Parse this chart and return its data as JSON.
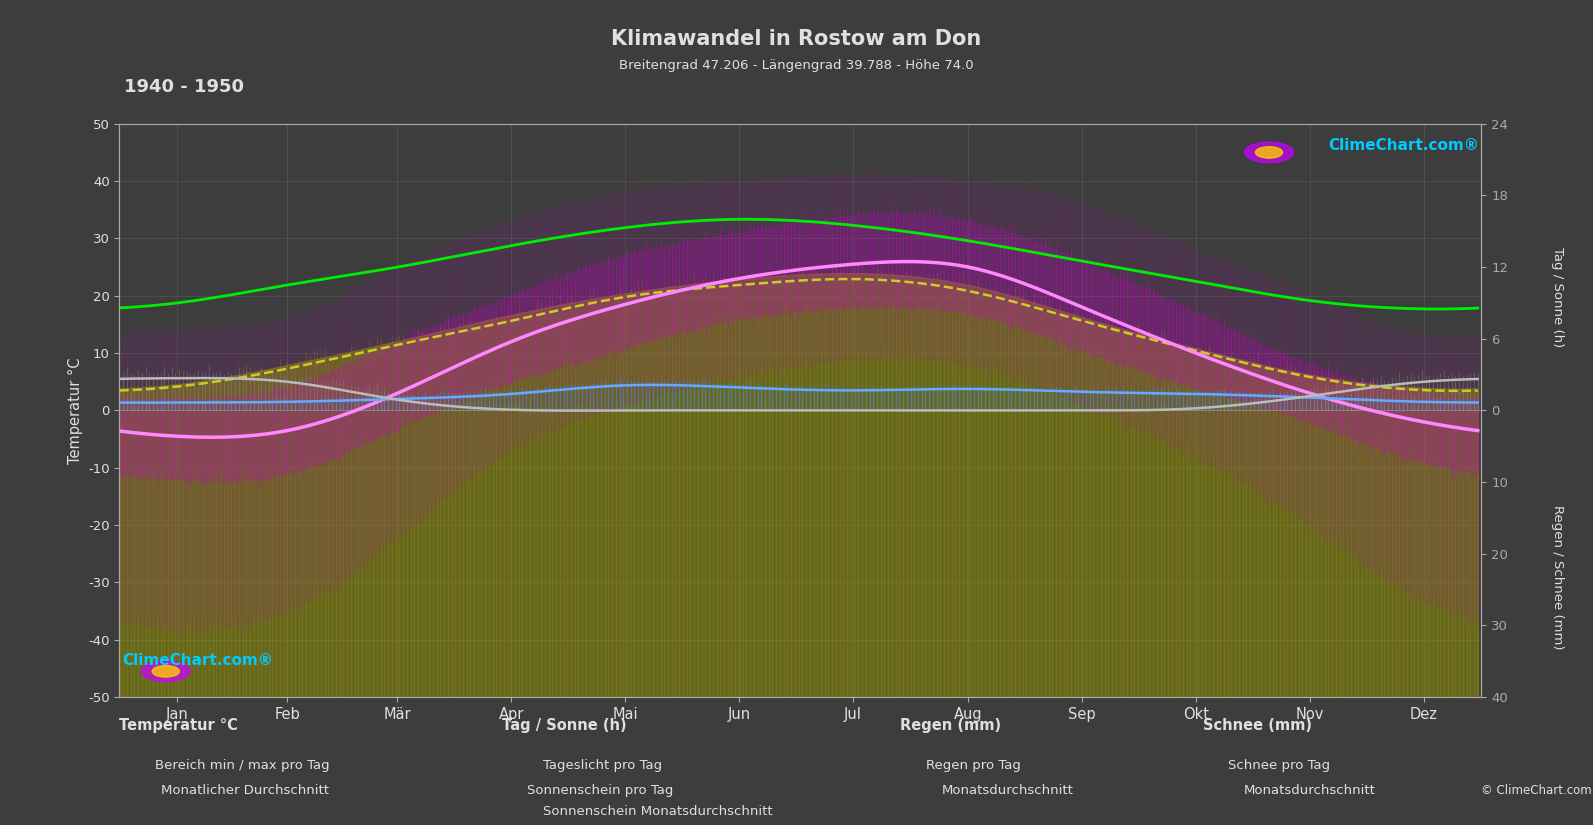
{
  "title": "Klimawandel in Rostow am Don",
  "subtitle": "Breitengrad 47.206 - Längengrad 39.788 - Höhe 74.0",
  "year_range": "1940 - 1950",
  "background_color": "#3d3d3d",
  "plot_bg_color": "#3d3d3d",
  "months": [
    "Jan",
    "Feb",
    "Mär",
    "Apr",
    "Mai",
    "Jun",
    "Jul",
    "Aug",
    "Sep",
    "Okt",
    "Nov",
    "Dez"
  ],
  "month_days": [
    31,
    28,
    31,
    30,
    31,
    30,
    31,
    31,
    30,
    31,
    30,
    31
  ],
  "temp_ylim": [
    -50,
    50
  ],
  "sun_ylim_max": 24,
  "precip_ylim_max": 40,
  "temp_avg_monthly": [
    -4.5,
    -3.5,
    3.0,
    12.0,
    18.5,
    23.0,
    25.5,
    25.0,
    18.0,
    10.0,
    3.0,
    -2.0
  ],
  "temp_max_monthly": [
    2.0,
    4.0,
    12.0,
    20.0,
    27.0,
    31.0,
    34.0,
    33.0,
    26.0,
    17.0,
    8.0,
    3.0
  ],
  "temp_min_monthly": [
    -12.0,
    -11.0,
    -3.0,
    5.0,
    11.0,
    16.0,
    18.0,
    17.0,
    10.5,
    4.0,
    -2.0,
    -9.0
  ],
  "temp_abs_max_monthly": [
    14.0,
    16.0,
    25.0,
    33.0,
    38.0,
    40.0,
    41.0,
    40.0,
    36.0,
    28.0,
    20.0,
    13.0
  ],
  "temp_abs_min_monthly": [
    -38.0,
    -35.0,
    -22.0,
    -7.0,
    1.0,
    6.0,
    9.0,
    8.0,
    1.0,
    -8.0,
    -20.0,
    -33.0
  ],
  "daylight_monthly": [
    9.0,
    10.5,
    12.0,
    13.8,
    15.3,
    16.0,
    15.5,
    14.2,
    12.5,
    10.8,
    9.2,
    8.5
  ],
  "sunshine_monthly": [
    2.2,
    3.8,
    5.8,
    8.0,
    9.8,
    11.0,
    11.5,
    10.5,
    7.8,
    5.2,
    3.0,
    1.9
  ],
  "sunshine_avg_monthly": [
    2.0,
    3.5,
    5.5,
    7.5,
    9.5,
    10.5,
    11.0,
    10.0,
    7.5,
    5.0,
    2.8,
    1.7
  ],
  "rain_daily_monthly": [
    1.2,
    1.3,
    1.8,
    2.5,
    3.8,
    3.5,
    3.0,
    3.2,
    2.8,
    2.5,
    2.0,
    1.4
  ],
  "rain_avg_monthly": [
    1.1,
    1.2,
    1.6,
    2.3,
    3.5,
    3.2,
    2.8,
    3.0,
    2.6,
    2.3,
    1.8,
    1.2
  ],
  "snow_daily_monthly": [
    5.0,
    4.5,
    2.0,
    0.3,
    0.0,
    0.0,
    0.0,
    0.0,
    0.0,
    0.5,
    2.5,
    4.5
  ],
  "snow_avg_monthly": [
    4.5,
    4.0,
    1.5,
    0.1,
    0.0,
    0.0,
    0.0,
    0.0,
    0.0,
    0.3,
    2.0,
    4.0
  ],
  "colors": {
    "temp_bar": "#cc00cc",
    "temp_avg_line": "#ff88ff",
    "daylight_line": "#00ee00",
    "sunshine_bar": "#888800",
    "sunshine_fill": "#999900",
    "sunshine_avg_line": "#cccc22",
    "rain_bar": "#4488ee",
    "rain_avg_line": "#66aaff",
    "snow_bar": "#888888",
    "snow_avg_line": "#bbbbbb",
    "grid_color": "#5a5a5a",
    "text_color": "#e0e0e0",
    "axis_color": "#aaaaaa",
    "zero_line": "#888888"
  },
  "right_axis_sun_ticks": [
    0,
    6,
    12,
    18,
    24
  ],
  "right_axis_precip_ticks": [
    0,
    10,
    20,
    30,
    40
  ]
}
